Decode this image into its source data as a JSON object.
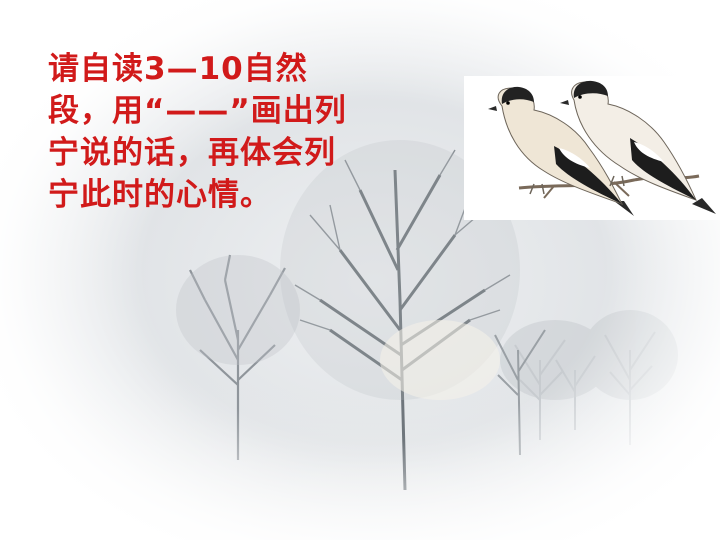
{
  "slide": {
    "instruction_lines": [
      "请自读3—10自然",
      "段，用“——”画出列",
      "宁说的话，再体会列",
      "宁此时的心情。"
    ],
    "text_color": "#d11a1a"
  },
  "illustrations": {
    "background": "snowy-winter-trees-scene",
    "birds": "two-bullfinches-on-branch"
  }
}
